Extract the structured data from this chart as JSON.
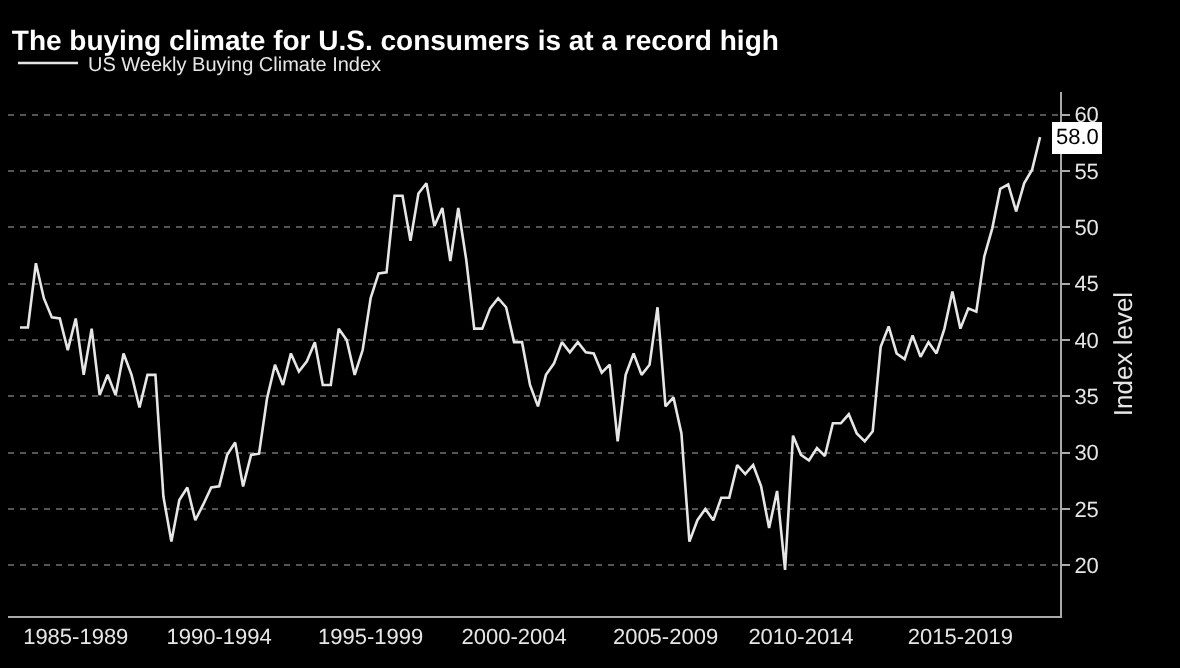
{
  "chart_data": {
    "type": "line",
    "title": "The buying climate for U.S. consumers is at a record high",
    "ylabel": "Index level",
    "legend": "top left",
    "grid": "y",
    "marker": "none",
    "line_style": "solid",
    "ylim": [
      15.5,
      62
    ],
    "categories": [
      null,
      null,
      null,
      null,
      null,
      null,
      null,
      "1985-1989",
      null,
      null,
      null,
      null,
      null,
      null,
      null,
      null,
      null,
      null,
      null,
      null,
      null,
      null,
      null,
      null,
      null,
      "1990-1994",
      null,
      null,
      null,
      null,
      null,
      null,
      null,
      null,
      null,
      null,
      null,
      null,
      null,
      null,
      null,
      null,
      null,
      null,
      "1995-1999",
      null,
      null,
      null,
      null,
      null,
      null,
      null,
      null,
      null,
      null,
      null,
      null,
      null,
      null,
      null,
      null,
      null,
      "2000-2004",
      null,
      null,
      null,
      null,
      null,
      null,
      null,
      null,
      null,
      null,
      null,
      null,
      null,
      null,
      null,
      null,
      null,
      null,
      "2005-2009",
      null,
      null,
      null,
      null,
      null,
      null,
      null,
      null,
      null,
      null,
      null,
      null,
      null,
      null,
      null,
      null,
      "2010-2014",
      null,
      null,
      null,
      null,
      null,
      null,
      null,
      null,
      null,
      null,
      null,
      null,
      null,
      null,
      null,
      null,
      null,
      null,
      null,
      "2015-2019",
      null,
      null,
      null,
      null,
      null,
      null,
      null,
      null,
      null,
      null
    ],
    "yticks": [
      20,
      25,
      30,
      35,
      40,
      45,
      50,
      55,
      60
    ],
    "annotations": [
      {
        "text": "58.0",
        "y": 58.0
      }
    ],
    "series": [
      {
        "name": "US Weekly Buying Climate Index",
        "color": "#e6e6e6",
        "values": [
          41.1,
          41.1,
          46.8,
          43.7,
          42.0,
          41.9,
          39.1,
          41.9,
          36.9,
          41.0,
          35.1,
          36.9,
          35.1,
          38.8,
          36.9,
          34.0,
          36.9,
          36.9,
          26.1,
          22.1,
          25.8,
          26.9,
          24.0,
          25.4,
          26.9,
          27.0,
          29.8,
          30.9,
          27.0,
          29.8,
          29.9,
          34.8,
          37.8,
          36.0,
          38.8,
          37.2,
          38.1,
          39.8,
          36.0,
          36.0,
          41.0,
          40.0,
          36.9,
          39.1,
          43.7,
          45.9,
          46.0,
          52.8,
          52.8,
          48.8,
          53.0,
          53.9,
          50.1,
          51.7,
          47.0,
          51.7,
          47.1,
          41.0,
          41.0,
          42.8,
          43.7,
          42.9,
          39.8,
          39.8,
          36.0,
          34.1,
          36.9,
          37.9,
          39.8,
          38.9,
          39.8,
          38.9,
          38.8,
          37.1,
          37.8,
          31.0,
          36.9,
          38.8,
          36.9,
          37.8,
          42.9,
          34.1,
          34.9,
          31.7,
          22.1,
          24.0,
          25.0,
          24.0,
          26.0,
          26.0,
          28.9,
          28.1,
          28.9,
          27.0,
          23.3,
          26.6,
          19.6,
          31.5,
          29.8,
          29.3,
          30.4,
          29.7,
          32.6,
          32.6,
          33.4,
          31.7,
          31.0,
          31.9,
          39.4,
          41.2,
          38.8,
          38.3,
          40.4,
          38.5,
          39.8,
          38.8,
          41.0,
          44.3,
          41.0,
          42.8,
          42.5,
          47.4,
          49.9,
          53.4,
          53.8,
          51.4,
          53.9,
          55.1,
          58.0
        ]
      }
    ]
  }
}
